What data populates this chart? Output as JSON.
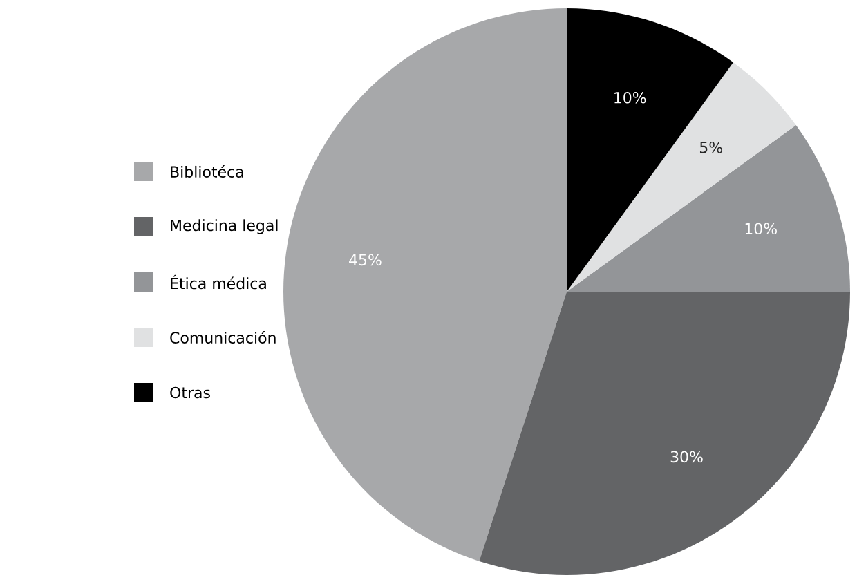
{
  "chart_data": {
    "type": "pie",
    "categories": [
      "Bibliotéca",
      "Medicina legal",
      "Ética médica",
      "Comunicación",
      "Otras"
    ],
    "values": [
      45,
      30,
      10,
      5,
      10
    ],
    "value_labels": [
      "45%",
      "30%",
      "10%",
      "5%",
      "10%"
    ],
    "colors": [
      "#a7a8aa",
      "#636466",
      "#939598",
      "#e0e1e2",
      "#000000"
    ],
    "legend": "left"
  }
}
